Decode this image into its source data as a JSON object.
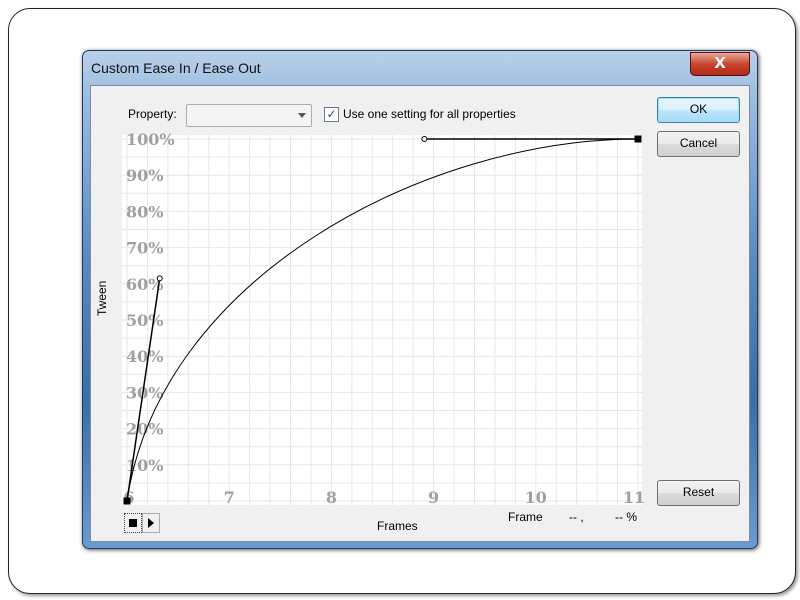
{
  "dialog": {
    "title": "Custom Ease In / Ease Out",
    "close_label": "X"
  },
  "property": {
    "label": "Property:",
    "value": ""
  },
  "use_one_setting": {
    "label": "Use one setting for all properties",
    "checked": true
  },
  "buttons": {
    "ok": "OK",
    "cancel": "Cancel",
    "reset": "Reset"
  },
  "status": {
    "frame_label": "Frame",
    "frame_value": "-- ,",
    "percent_value": "-- %"
  },
  "chart_data": {
    "type": "line",
    "xlabel": "Frames",
    "ylabel": "Tween",
    "x_ticks": [
      "6",
      "7",
      "8",
      "9",
      "10",
      "11"
    ],
    "y_ticks": [
      "10%",
      "20%",
      "30%",
      "40%",
      "50%",
      "60%",
      "70%",
      "80%",
      "90%",
      "100%"
    ],
    "xlim": [
      6,
      11
    ],
    "ylim": [
      0,
      100
    ],
    "grid": true,
    "curve": {
      "start": [
        6,
        0
      ],
      "start_handle": [
        6.32,
        61.5
      ],
      "end_handle": [
        8.91,
        100
      ],
      "end": [
        11,
        100
      ]
    }
  },
  "playback": {
    "stop_icon": "stop-icon",
    "play_icon": "play-icon"
  }
}
